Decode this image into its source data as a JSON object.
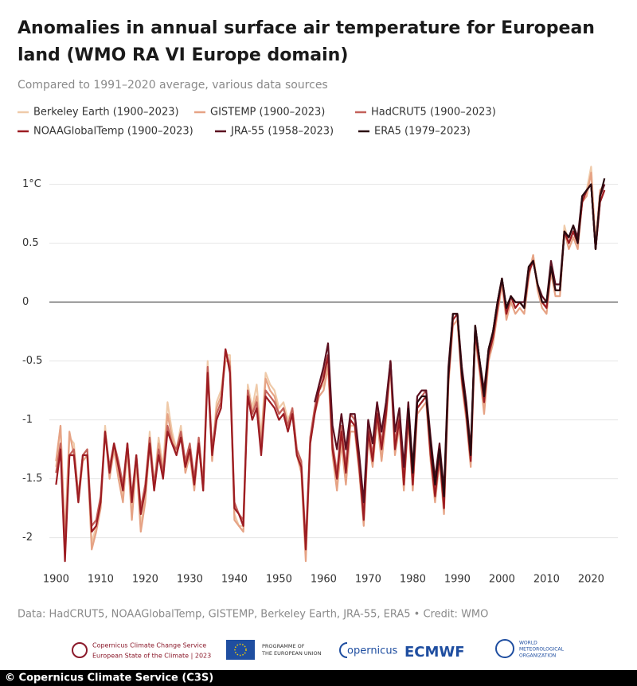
{
  "chart_data": {
    "type": "line",
    "title": [
      "Anomalies in annual surface air temperature for European",
      "land (WMO RA VI Europe domain)"
    ],
    "subtitle": "Compared to 1991–2020 average, various data sources",
    "x": [
      1900,
      1901,
      1902,
      1903,
      1904,
      1905,
      1906,
      1907,
      1908,
      1909,
      1910,
      1911,
      1912,
      1913,
      1914,
      1915,
      1916,
      1917,
      1918,
      1919,
      1920,
      1921,
      1922,
      1923,
      1924,
      1925,
      1926,
      1927,
      1928,
      1929,
      1930,
      1931,
      1932,
      1933,
      1934,
      1935,
      1936,
      1937,
      1938,
      1939,
      1940,
      1941,
      1942,
      1943,
      1944,
      1945,
      1946,
      1947,
      1948,
      1949,
      1950,
      1951,
      1952,
      1953,
      1954,
      1955,
      1956,
      1957,
      1958,
      1959,
      1960,
      1961,
      1962,
      1963,
      1964,
      1965,
      1966,
      1967,
      1968,
      1969,
      1970,
      1971,
      1972,
      1973,
      1974,
      1975,
      1976,
      1977,
      1978,
      1979,
      1980,
      1981,
      1982,
      1983,
      1984,
      1985,
      1986,
      1987,
      1988,
      1989,
      1990,
      1991,
      1992,
      1993,
      1994,
      1995,
      1996,
      1997,
      1998,
      1999,
      2000,
      2001,
      2002,
      2003,
      2004,
      2005,
      2006,
      2007,
      2008,
      2009,
      2010,
      2011,
      2012,
      2013,
      2014,
      2015,
      2016,
      2017,
      2018,
      2019,
      2020,
      2021,
      2022,
      2023
    ],
    "series": [
      {
        "name": "Berkeley Earth (1900–2023)",
        "color": "#efcaa9",
        "values": [
          -1.4,
          -1.05,
          -2.05,
          -1.15,
          -1.2,
          -1.65,
          -1.3,
          -1.25,
          -2.05,
          -1.9,
          -1.7,
          -1.05,
          -1.45,
          -1.2,
          -1.45,
          -1.65,
          -1.2,
          -1.8,
          -1.3,
          -1.9,
          -1.65,
          -1.1,
          -1.55,
          -1.15,
          -1.4,
          -0.85,
          -1.1,
          -1.25,
          -1.05,
          -1.4,
          -1.25,
          -1.55,
          -1.15,
          -1.55,
          -0.5,
          -1.3,
          -0.85,
          -0.75,
          -0.45,
          -0.45,
          -1.8,
          -1.9,
          -1.9,
          -0.7,
          -0.9,
          -0.7,
          -1.15,
          -0.6,
          -0.7,
          -0.75,
          -0.9,
          -0.85,
          -1.0,
          -0.9,
          -1.25,
          -1.4,
          -2.15,
          -1.15,
          -0.9,
          -0.75,
          -0.7,
          -0.5,
          -1.25,
          -1.55,
          -1.15,
          -1.5,
          -1.05,
          -1.05,
          -1.4,
          -1.85,
          -1.1,
          -1.35,
          -0.95,
          -1.3,
          -0.95,
          -0.5,
          -1.25,
          -1.0,
          -1.55,
          -0.95,
          -1.55,
          -0.9,
          -0.85,
          -0.8,
          -1.3,
          -1.65,
          -1.3,
          -1.75,
          -0.65,
          -0.15,
          -0.1,
          -0.65,
          -0.95,
          -1.35,
          -0.25,
          -0.55,
          -0.9,
          -0.45,
          -0.3,
          -0.05,
          0.2,
          -0.1,
          0.05,
          -0.05,
          0.0,
          -0.05,
          0.25,
          0.4,
          0.15,
          0.0,
          -0.05,
          0.3,
          0.1,
          0.1,
          0.65,
          0.5,
          0.6,
          0.5,
          0.9,
          0.95,
          1.15,
          0.5,
          0.9,
          1.0
        ]
      },
      {
        "name": "GISTEMP (1900–2023)",
        "color": "#e6a385",
        "values": [
          -1.35,
          -1.05,
          -2.0,
          -1.1,
          -1.3,
          -1.7,
          -1.35,
          -1.3,
          -2.1,
          -1.95,
          -1.75,
          -1.1,
          -1.5,
          -1.25,
          -1.5,
          -1.7,
          -1.25,
          -1.85,
          -1.35,
          -1.95,
          -1.7,
          -1.2,
          -1.6,
          -1.2,
          -1.45,
          -0.95,
          -1.15,
          -1.3,
          -1.1,
          -1.45,
          -1.3,
          -1.6,
          -1.2,
          -1.6,
          -0.55,
          -1.35,
          -0.9,
          -0.8,
          -0.5,
          -0.5,
          -1.85,
          -1.9,
          -1.95,
          -0.75,
          -0.95,
          -0.8,
          -1.2,
          -0.65,
          -0.75,
          -0.8,
          -0.95,
          -0.9,
          -1.05,
          -0.95,
          -1.3,
          -1.45,
          -2.2,
          -1.2,
          -0.95,
          -0.8,
          -0.75,
          -0.55,
          -1.3,
          -1.6,
          -1.2,
          -1.55,
          -1.1,
          -1.1,
          -1.45,
          -1.9,
          -1.15,
          -1.4,
          -1.0,
          -1.35,
          -1.0,
          -0.55,
          -1.3,
          -1.05,
          -1.6,
          -1.0,
          -1.6,
          -0.95,
          -0.9,
          -0.85,
          -1.35,
          -1.7,
          -1.35,
          -1.8,
          -0.7,
          -0.2,
          -0.15,
          -0.7,
          -1.0,
          -1.4,
          -0.3,
          -0.6,
          -0.95,
          -0.5,
          -0.35,
          -0.1,
          0.15,
          -0.15,
          0.0,
          -0.1,
          -0.05,
          -0.1,
          0.2,
          0.4,
          0.1,
          -0.05,
          -0.1,
          0.25,
          0.05,
          0.05,
          0.6,
          0.45,
          0.55,
          0.45,
          0.85,
          0.9,
          1.1,
          0.5,
          0.95,
          1.0
        ]
      },
      {
        "name": "HadCRUT5 (1900–2023)",
        "color": "#c4615a",
        "values": [
          -1.45,
          -1.2,
          -2.1,
          -1.3,
          -1.25,
          -1.65,
          -1.3,
          -1.25,
          -1.9,
          -1.85,
          -1.65,
          -1.1,
          -1.4,
          -1.2,
          -1.35,
          -1.55,
          -1.2,
          -1.65,
          -1.3,
          -1.75,
          -1.55,
          -1.15,
          -1.55,
          -1.25,
          -1.45,
          -1.05,
          -1.2,
          -1.25,
          -1.1,
          -1.35,
          -1.2,
          -1.5,
          -1.15,
          -1.55,
          -0.55,
          -1.25,
          -0.95,
          -0.85,
          -0.4,
          -0.55,
          -1.7,
          -1.8,
          -1.85,
          -0.75,
          -0.95,
          -0.85,
          -1.25,
          -0.75,
          -0.8,
          -0.85,
          -0.95,
          -0.9,
          -1.05,
          -0.9,
          -1.25,
          -1.35,
          -2.05,
          -1.15,
          -0.9,
          -0.7,
          -0.6,
          -0.45,
          -1.2,
          -1.45,
          -1.05,
          -1.4,
          -0.95,
          -1.0,
          -1.35,
          -1.8,
          -1.05,
          -1.3,
          -0.9,
          -1.2,
          -0.9,
          -0.5,
          -1.2,
          -0.95,
          -1.5,
          -0.9,
          -1.5,
          -0.85,
          -0.8,
          -0.75,
          -1.25,
          -1.6,
          -1.25,
          -1.7,
          -0.6,
          -0.1,
          -0.1,
          -0.6,
          -0.9,
          -1.3,
          -0.2,
          -0.5,
          -0.8,
          -0.4,
          -0.25,
          0.0,
          0.2,
          -0.1,
          0.05,
          0.0,
          0.0,
          -0.05,
          0.25,
          0.35,
          0.15,
          0.0,
          -0.05,
          0.3,
          0.1,
          0.1,
          0.6,
          0.5,
          0.6,
          0.5,
          0.85,
          0.95,
          1.0,
          0.45,
          0.85,
          0.95
        ]
      },
      {
        "name": "NOAAGlobalTemp (1900–2023)",
        "color": "#9c1c22",
        "values": [
          -1.55,
          -1.25,
          -2.2,
          -1.3,
          -1.3,
          -1.7,
          -1.3,
          -1.3,
          -1.95,
          -1.9,
          -1.7,
          -1.1,
          -1.45,
          -1.2,
          -1.4,
          -1.6,
          -1.2,
          -1.7,
          -1.3,
          -1.8,
          -1.6,
          -1.2,
          -1.6,
          -1.3,
          -1.5,
          -1.1,
          -1.2,
          -1.3,
          -1.15,
          -1.4,
          -1.25,
          -1.55,
          -1.2,
          -1.6,
          -0.6,
          -1.3,
          -1.0,
          -0.9,
          -0.4,
          -0.6,
          -1.75,
          -1.8,
          -1.9,
          -0.8,
          -1.0,
          -0.9,
          -1.3,
          -0.8,
          -0.85,
          -0.9,
          -1.0,
          -0.95,
          -1.1,
          -0.95,
          -1.3,
          -1.4,
          -2.1,
          -1.2,
          -0.95,
          -0.75,
          -0.65,
          -0.45,
          -1.25,
          -1.5,
          -1.1,
          -1.45,
          -1.0,
          -1.05,
          -1.4,
          -1.85,
          -1.1,
          -1.35,
          -0.95,
          -1.25,
          -0.95,
          -0.5,
          -1.25,
          -1.0,
          -1.55,
          -0.95,
          -1.55,
          -0.9,
          -0.85,
          -0.8,
          -1.3,
          -1.65,
          -1.3,
          -1.75,
          -0.65,
          -0.15,
          -0.1,
          -0.65,
          -0.95,
          -1.35,
          -0.25,
          -0.55,
          -0.85,
          -0.45,
          -0.3,
          -0.05,
          0.2,
          -0.1,
          0.05,
          -0.05,
          0.0,
          -0.05,
          0.25,
          0.35,
          0.15,
          0.0,
          -0.05,
          0.3,
          0.1,
          0.1,
          0.6,
          0.5,
          0.6,
          0.5,
          0.85,
          0.95,
          1.0,
          0.45,
          0.85,
          0.95
        ]
      },
      {
        "name": "JRA-55 (1958–2023)",
        "color": "#5c1020",
        "values": [
          null,
          null,
          null,
          null,
          null,
          null,
          null,
          null,
          null,
          null,
          null,
          null,
          null,
          null,
          null,
          null,
          null,
          null,
          null,
          null,
          null,
          null,
          null,
          null,
          null,
          null,
          null,
          null,
          null,
          null,
          null,
          null,
          null,
          null,
          null,
          null,
          null,
          null,
          null,
          null,
          null,
          null,
          null,
          null,
          null,
          null,
          null,
          null,
          null,
          null,
          null,
          null,
          null,
          null,
          null,
          null,
          null,
          null,
          -0.85,
          -0.7,
          -0.55,
          -0.35,
          -1.05,
          -1.25,
          -0.95,
          -1.25,
          -0.95,
          -0.95,
          -1.3,
          -1.7,
          -1.0,
          -1.2,
          -0.85,
          -1.1,
          -0.85,
          -0.5,
          -1.1,
          -0.9,
          -1.4,
          -0.85,
          -1.4,
          -0.8,
          -0.75,
          -0.75,
          -1.15,
          -1.5,
          -1.2,
          -1.6,
          -0.55,
          -0.1,
          -0.1,
          -0.55,
          -0.85,
          -1.25,
          -0.2,
          -0.5,
          -0.75,
          -0.4,
          -0.25,
          0.0,
          0.2,
          -0.05,
          0.05,
          0.0,
          0.0,
          0.0,
          0.3,
          0.35,
          0.15,
          0.05,
          0.0,
          0.35,
          0.15,
          0.15,
          0.6,
          0.55,
          0.65,
          0.55,
          0.9,
          0.95,
          1.0,
          0.45,
          0.9,
          1.0
        ]
      },
      {
        "name": "ERA5 (1979–2023)",
        "color": "#2a0a10",
        "values": [
          null,
          null,
          null,
          null,
          null,
          null,
          null,
          null,
          null,
          null,
          null,
          null,
          null,
          null,
          null,
          null,
          null,
          null,
          null,
          null,
          null,
          null,
          null,
          null,
          null,
          null,
          null,
          null,
          null,
          null,
          null,
          null,
          null,
          null,
          null,
          null,
          null,
          null,
          null,
          null,
          null,
          null,
          null,
          null,
          null,
          null,
          null,
          null,
          null,
          null,
          null,
          null,
          null,
          null,
          null,
          null,
          null,
          null,
          null,
          null,
          null,
          null,
          null,
          null,
          null,
          null,
          null,
          null,
          null,
          null,
          null,
          null,
          null,
          null,
          null,
          null,
          null,
          null,
          null,
          -0.9,
          -1.45,
          -0.85,
          -0.8,
          -0.8,
          -1.2,
          -1.55,
          -1.25,
          -1.65,
          -0.6,
          -0.1,
          -0.1,
          -0.6,
          -0.9,
          -1.3,
          -0.2,
          -0.5,
          -0.8,
          -0.4,
          -0.25,
          0.0,
          0.2,
          -0.05,
          0.05,
          0.0,
          0.0,
          -0.05,
          0.3,
          0.35,
          0.15,
          0.0,
          0.0,
          0.3,
          0.1,
          0.1,
          0.6,
          0.55,
          0.65,
          0.5,
          0.9,
          0.95,
          1.0,
          0.45,
          0.9,
          1.05
        ]
      }
    ],
    "xlim": [
      1898.5,
      2026
    ],
    "xticks": [
      1900,
      1910,
      1920,
      1930,
      1940,
      1950,
      1960,
      1970,
      1980,
      1990,
      2000,
      2010,
      2020
    ],
    "ylim": [
      -2.3,
      1.2
    ],
    "yticks": [
      {
        "value": 1,
        "label": "1°C"
      },
      0.5,
      0,
      -0.5,
      -1,
      -1.5,
      -2
    ],
    "grid": true,
    "source": "Data: HadCRUT5, NOAAGlobalTemp, GISTEMP, Berkeley Earth, JRA-55, ERA5 • Credit: WMO"
  },
  "logos": {
    "c3s": [
      "Copernicus Climate Change Service",
      "European State of the Climate | 2023"
    ],
    "eu": [
      "PROGRAMME OF",
      "THE EUROPEAN UNION"
    ],
    "copernicus": "opernicus",
    "ecmwf": "ECMWF",
    "wmo": [
      "WORLD",
      "METEOROLOGICAL",
      "ORGANIZATION"
    ]
  },
  "copyright": "© Copernicus Climate Service (C3S)"
}
